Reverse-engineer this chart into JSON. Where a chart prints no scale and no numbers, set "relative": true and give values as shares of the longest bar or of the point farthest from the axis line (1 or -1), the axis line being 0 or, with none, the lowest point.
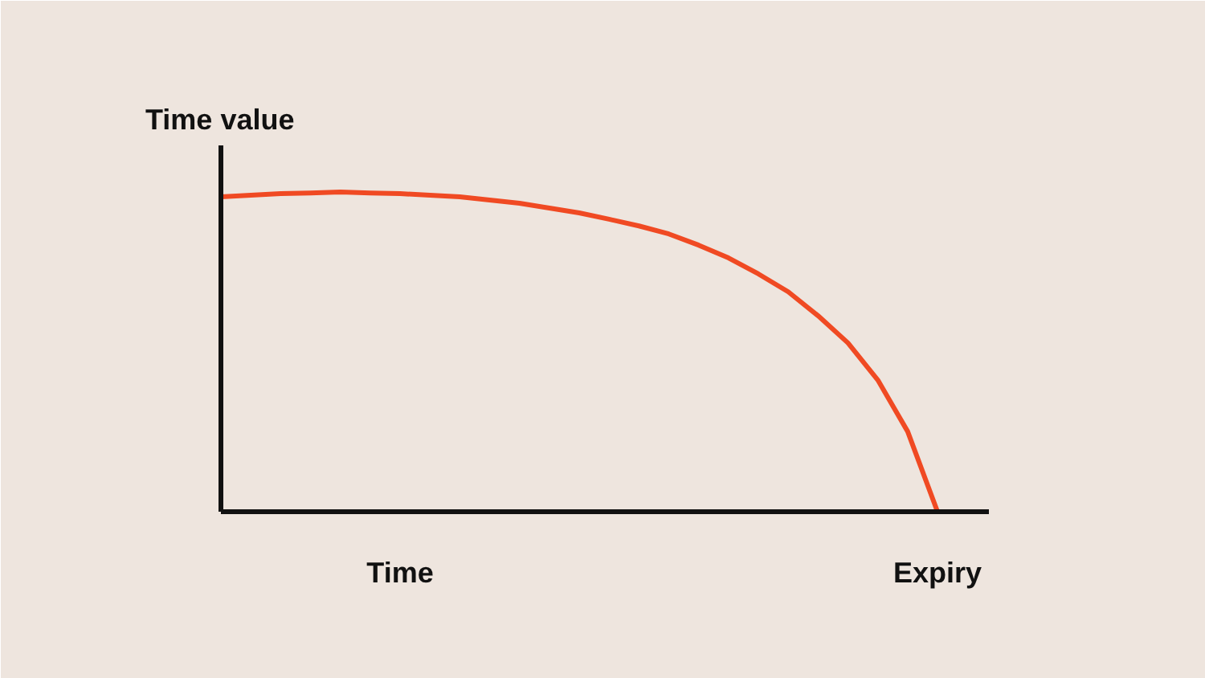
{
  "chart_data": {
    "type": "line",
    "relative": true,
    "ylabel": "Time  value",
    "categories": [
      null,
      null,
      null,
      null,
      null,
      null,
      "Time",
      null,
      null,
      null,
      null,
      null,
      null,
      null,
      null,
      null,
      null,
      null,
      null,
      null,
      null,
      null,
      null,
      null,
      "Expiry"
    ],
    "series": [
      {
        "color": "#f04a23",
        "values": [
          0.985,
          0.99,
          0.995,
          0.997,
          1.0,
          0.997,
          0.995,
          0.99,
          0.985,
          0.975,
          0.965,
          0.95,
          0.935,
          0.915,
          0.894,
          0.869,
          0.834,
          0.794,
          0.744,
          0.688,
          0.613,
          0.528,
          0.412,
          0.251,
          0
        ]
      }
    ],
    "grid": false,
    "legend": false,
    "marker": "none",
    "line_style": "solid"
  }
}
